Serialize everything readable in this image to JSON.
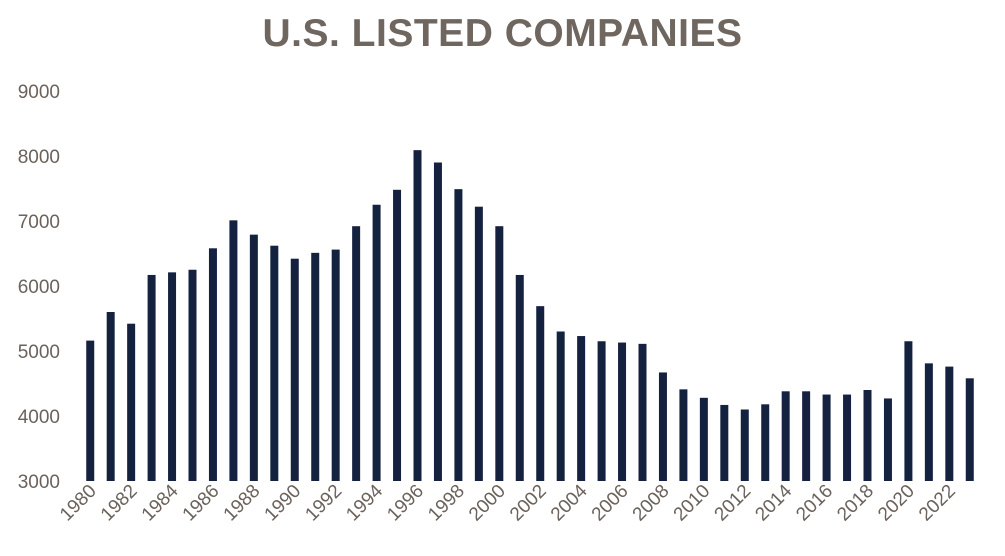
{
  "chart_data": {
    "type": "bar",
    "title": "U.S. LISTED COMPANIES",
    "xlabel": "",
    "ylabel": "",
    "ylim": [
      3000,
      9000
    ],
    "yticks": [
      3000,
      4000,
      5000,
      6000,
      7000,
      8000,
      9000
    ],
    "grid": false,
    "legend": "none",
    "categories": [
      "1980",
      "1981",
      "1982",
      "1983",
      "1984",
      "1985",
      "1986",
      "1987",
      "1988",
      "1989",
      "1990",
      "1991",
      "1992",
      "1993",
      "1994",
      "1995",
      "1996",
      "1997",
      "1998",
      "1999",
      "2000",
      "2001",
      "2002",
      "2003",
      "2004",
      "2005",
      "2006",
      "2007",
      "2008",
      "2009",
      "2010",
      "2011",
      "2012",
      "2013",
      "2014",
      "2015",
      "2016",
      "2017",
      "2018",
      "2019",
      "2020",
      "2021",
      "2022",
      "2023"
    ],
    "xtick_labels": [
      "1980",
      "1982",
      "1984",
      "1986",
      "1988",
      "1990",
      "1992",
      "1994",
      "1996",
      "1998",
      "2000",
      "2002",
      "2004",
      "2006",
      "2008",
      "2010",
      "2012",
      "2014",
      "2016",
      "2018",
      "2020",
      "2022"
    ],
    "values": [
      5160,
      5600,
      5420,
      6170,
      6210,
      6250,
      6580,
      7010,
      6790,
      6620,
      6420,
      6510,
      6560,
      6920,
      7250,
      7480,
      8090,
      7900,
      7490,
      7220,
      6920,
      6170,
      5690,
      5300,
      5230,
      5150,
      5130,
      5110,
      4670,
      4410,
      4280,
      4170,
      4100,
      4180,
      4380,
      4380,
      4330,
      4330,
      4400,
      4270,
      5150,
      4810,
      4760,
      4580
    ]
  },
  "colors": {
    "bar": "#15223f",
    "title": "#6e665f",
    "tick_text": "#6b625c"
  }
}
